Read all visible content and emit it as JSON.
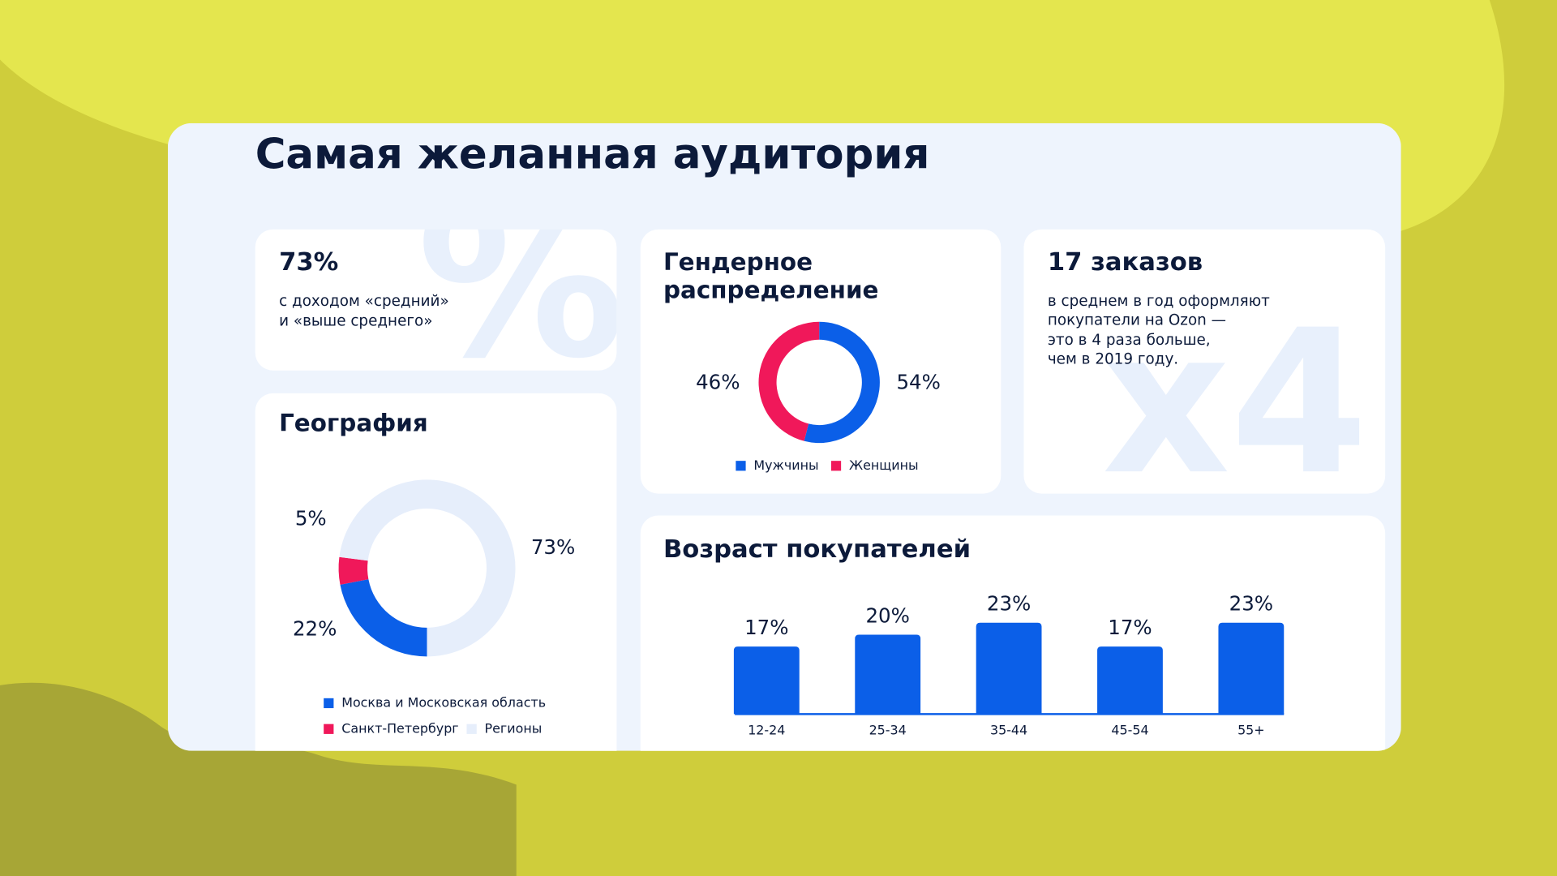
{
  "title": "Самая желанная аудитория",
  "income": {
    "heading": "73%",
    "lines": [
      "с доходом «средний»",
      "и «выше среднего»"
    ],
    "watermark": "%"
  },
  "orders": {
    "heading": "17 заказов",
    "lines": [
      "в среднем в год оформляют",
      "покупатели на Ozon —",
      "это в 4 раза больше,",
      "чем в 2019 году."
    ],
    "watermark": "x4"
  },
  "chart_data": [
    {
      "type": "donut",
      "title": "География",
      "categories": [
        "Москва и Московская область",
        "Санкт-Петербург",
        "Регионы"
      ],
      "values": [
        22,
        5,
        73
      ],
      "value_labels": [
        "22%",
        "5%",
        "73%"
      ],
      "colors": [
        "#0b5fe8",
        "#f0185a",
        "#e6eefb"
      ]
    },
    {
      "type": "donut",
      "title": "Гендерное распределение",
      "categories": [
        "Мужчины",
        "Женщины"
      ],
      "values": [
        54,
        46
      ],
      "value_labels": [
        "54%",
        "46%"
      ],
      "colors": [
        "#0b5fe8",
        "#f0185a"
      ]
    },
    {
      "type": "bar",
      "title": "Возраст покупателей",
      "categories": [
        "12-24",
        "25-34",
        "35-44",
        "45-54",
        "55+"
      ],
      "values": [
        17,
        20,
        23,
        17,
        23
      ],
      "value_labels": [
        "17%",
        "20%",
        "23%",
        "17%",
        "23%"
      ],
      "color": "#0b5fe8"
    }
  ]
}
